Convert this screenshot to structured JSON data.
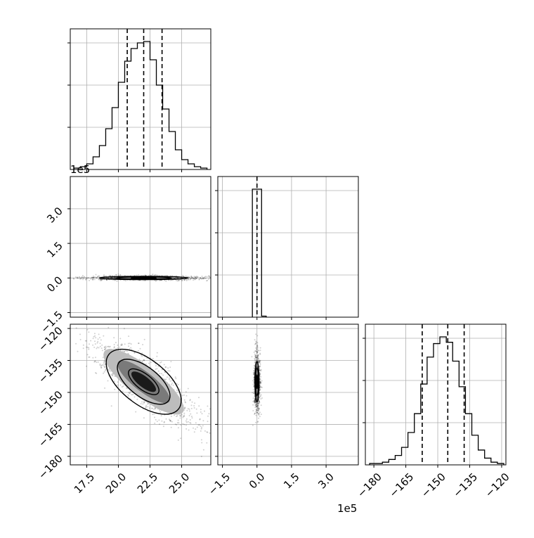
{
  "colors": {
    "axis": "#000000",
    "grid": "#b0b0b0",
    "density": "#000000",
    "background": "#ffffff"
  },
  "offset_labels": {
    "param2_y": "1e5",
    "param2_x": "1e5"
  },
  "chart_data": [
    {
      "type": "histogram",
      "panel": "param1",
      "grid": true,
      "xlim": [
        16.2,
        27.3
      ],
      "x_ticks": [
        17.5,
        20.0,
        22.5,
        25.0
      ],
      "bin_edges": [
        16.5,
        17.0,
        17.5,
        18.0,
        18.5,
        19.0,
        19.5,
        20.0,
        20.5,
        21.0,
        21.5,
        22.0,
        22.5,
        23.0,
        23.5,
        24.0,
        24.5,
        25.0,
        25.5,
        26.0,
        26.5,
        27.0
      ],
      "counts": [
        1,
        2,
        4,
        9,
        17,
        29,
        44,
        62,
        77,
        86,
        90,
        91,
        78,
        60,
        43,
        27,
        14,
        7,
        4,
        2,
        1
      ],
      "quantiles": [
        20.7,
        22.0,
        23.45
      ]
    },
    {
      "type": "scatter-contour",
      "panel": "param2_vs_param1",
      "grid": true,
      "xlim": [
        16.2,
        27.3
      ],
      "ylim": [
        -1.7,
        4.4
      ],
      "x_ticks": [
        17.5,
        20.0,
        22.5,
        25.0
      ],
      "y_ticks": [
        -1.5,
        0.0,
        1.5,
        3.0
      ],
      "center": [
        22.0,
        0.0
      ],
      "contour_levels": [
        {
          "rx": 3.5,
          "ry": 0.07
        },
        {
          "rx": 2.2,
          "ry": 0.045
        },
        {
          "rx": 1.0,
          "ry": 0.025
        }
      ]
    },
    {
      "type": "histogram",
      "panel": "param2",
      "grid": true,
      "xlim": [
        -1.7,
        4.4
      ],
      "x_ticks": [
        -1.5,
        0.0,
        1.5,
        3.0
      ],
      "bin_edges": [
        -0.2,
        0.0,
        0.2,
        0.4
      ],
      "counts": [
        600,
        600,
        5
      ],
      "quantiles": [
        0.0
      ]
    },
    {
      "type": "scatter-contour",
      "panel": "param3_vs_param1",
      "grid": true,
      "xlim": [
        16.2,
        27.3
      ],
      "ylim": [
        -184,
        -118
      ],
      "x_ticks": [
        17.5,
        20.0,
        22.5,
        25.0
      ],
      "y_ticks": [
        -180,
        -165,
        -150,
        -135,
        -120
      ],
      "center": [
        22.0,
        -145
      ],
      "angle": 38,
      "contour_levels": [
        {
          "a": 4.1,
          "b": 1.3
        },
        {
          "a": 2.9,
          "b": 0.85
        },
        {
          "a": 1.7,
          "b": 0.45
        }
      ]
    },
    {
      "type": "scatter-contour",
      "panel": "param3_vs_param2",
      "grid": true,
      "xlim": [
        -1.7,
        4.4
      ],
      "ylim": [
        -184,
        -118
      ],
      "x_ticks": [
        -1.5,
        0.0,
        1.5,
        3.0
      ],
      "y_ticks": [
        -180,
        -165,
        -150,
        -135,
        -120
      ],
      "center": [
        0.0,
        -145
      ],
      "contour_levels": [
        {
          "rx": 0.09,
          "ry": 9.5
        },
        {
          "rx": 0.06,
          "ry": 6.5
        },
        {
          "rx": 0.03,
          "ry": 3.2
        }
      ]
    },
    {
      "type": "histogram",
      "panel": "param3",
      "grid": true,
      "xlim": [
        -184,
        -118
      ],
      "x_ticks": [
        -180,
        -165,
        -150,
        -135,
        -120
      ],
      "bin_edges": [
        -182,
        -179,
        -176,
        -173,
        -170,
        -167,
        -164,
        -161,
        -158,
        -155,
        -152,
        -149,
        -146,
        -143,
        -140,
        -137,
        -134,
        -131,
        -128,
        -125,
        -122,
        -119
      ],
      "counts": [
        1,
        1,
        2,
        4,
        7,
        13,
        24,
        38,
        60,
        80,
        90,
        95,
        91,
        77,
        58,
        38,
        22,
        11,
        5,
        2,
        1
      ],
      "quantiles": [
        -157.3,
        -145.3,
        -137.6
      ]
    }
  ]
}
